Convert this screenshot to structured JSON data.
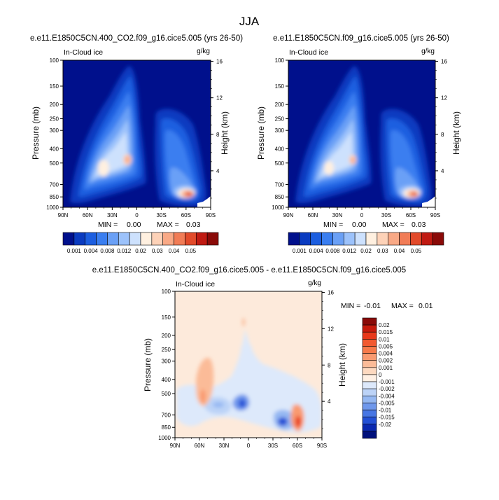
{
  "page_title": "JJA",
  "chart_data": [
    {
      "type": "heatmap",
      "id": "left",
      "title": "e.e11.E1850C5CN.400_CO2.f09_g16.cice5.005 (yrs 26-50)",
      "field_label": "In-Cloud ice",
      "units": "g/kg",
      "xlabel": "",
      "ylabel": "Pressure (mb)",
      "ylabel_right": "Height (km)",
      "x_ticks": [
        "90N",
        "60N",
        "30N",
        "0",
        "30S",
        "60S",
        "90S"
      ],
      "y_ticks": [
        "100",
        "150",
        "200",
        "250",
        "300",
        "400",
        "500",
        "700",
        "850",
        "1000"
      ],
      "y_ticks_right": [
        "16",
        "12",
        "8",
        "4"
      ],
      "stats": {
        "min_label": "MIN =",
        "min_value": "0.00",
        "max_label": "MAX =",
        "max_value": "0.03"
      },
      "colorbar": {
        "orientation": "horizontal",
        "levels": [
          "0.001",
          "0.004",
          "0.008",
          "0.012",
          "0.02",
          "0.03",
          "0.04",
          "0.05"
        ],
        "colors": [
          "#00108c",
          "#0a3bc0",
          "#1c5ee0",
          "#3a7ef0",
          "#6aa0f6",
          "#9cc2fb",
          "#cde1fd",
          "#fff0e0",
          "#fdd2b8",
          "#f9a986",
          "#f17c56",
          "#e24a2a",
          "#c01a12",
          "#8a0a08"
        ]
      }
    },
    {
      "type": "heatmap",
      "id": "right",
      "title": "e.e11.E1850C5CN.f09_g16.cice5.005 (yrs 26-50)",
      "field_label": "In-Cloud ice",
      "units": "g/kg",
      "xlabel": "",
      "ylabel": "Pressure (mb)",
      "ylabel_right": "Height (km)",
      "x_ticks": [
        "90N",
        "60N",
        "30N",
        "0",
        "30S",
        "60S",
        "90S"
      ],
      "y_ticks": [
        "100",
        "150",
        "200",
        "250",
        "300",
        "400",
        "500",
        "700",
        "850",
        "1000"
      ],
      "y_ticks_right": [
        "16",
        "12",
        "8",
        "4"
      ],
      "stats": {
        "min_label": "MIN =",
        "min_value": "0.00",
        "max_label": "MAX =",
        "max_value": "0.03"
      },
      "colorbar": {
        "orientation": "horizontal",
        "levels": [
          "0.001",
          "0.004",
          "0.008",
          "0.012",
          "0.02",
          "0.03",
          "0.04",
          "0.05"
        ],
        "colors": [
          "#00108c",
          "#0a3bc0",
          "#1c5ee0",
          "#3a7ef0",
          "#6aa0f6",
          "#9cc2fb",
          "#cde1fd",
          "#fff0e0",
          "#fdd2b8",
          "#f9a986",
          "#f17c56",
          "#e24a2a",
          "#c01a12",
          "#8a0a08"
        ]
      }
    },
    {
      "type": "heatmap",
      "id": "diff",
      "title": "e.e11.E1850C5CN.400_CO2.f09_g16.cice5.005 - e.e11.E1850C5CN.f09_g16.cice5.005",
      "field_label": "In-Cloud ice",
      "units": "g/kg",
      "xlabel": "",
      "ylabel": "Pressure (mb)",
      "ylabel_right": "Height (km)",
      "x_ticks": [
        "90N",
        "60N",
        "30N",
        "0",
        "30S",
        "60S",
        "90S"
      ],
      "y_ticks": [
        "100",
        "150",
        "200",
        "250",
        "300",
        "400",
        "500",
        "700",
        "850",
        "1000"
      ],
      "y_ticks_right": [
        "16",
        "12",
        "8",
        "4"
      ],
      "stats": {
        "min_label": "MIN =",
        "min_value": "-0.01",
        "max_label": "MAX =",
        "max_value": "0.01"
      },
      "colorbar": {
        "orientation": "vertical",
        "levels": [
          "0.02",
          "0.015",
          "0.01",
          "0.005",
          "0.004",
          "0.002",
          "0.001",
          "0",
          "-0.001",
          "-0.002",
          "-0.004",
          "-0.005",
          "-0.01",
          "-0.015",
          "-0.02"
        ],
        "colors": [
          "#8a0a08",
          "#c61a0c",
          "#e8381a",
          "#f25a30",
          "#f77a4a",
          "#f99a70",
          "#fbbb98",
          "#fdd9c0",
          "#fff0e4",
          "#dde9fb",
          "#bcd3f7",
          "#95b8f2",
          "#6f98ec",
          "#4776e4",
          "#2350d6",
          "#0a28b0",
          "#00107c"
        ]
      }
    }
  ]
}
